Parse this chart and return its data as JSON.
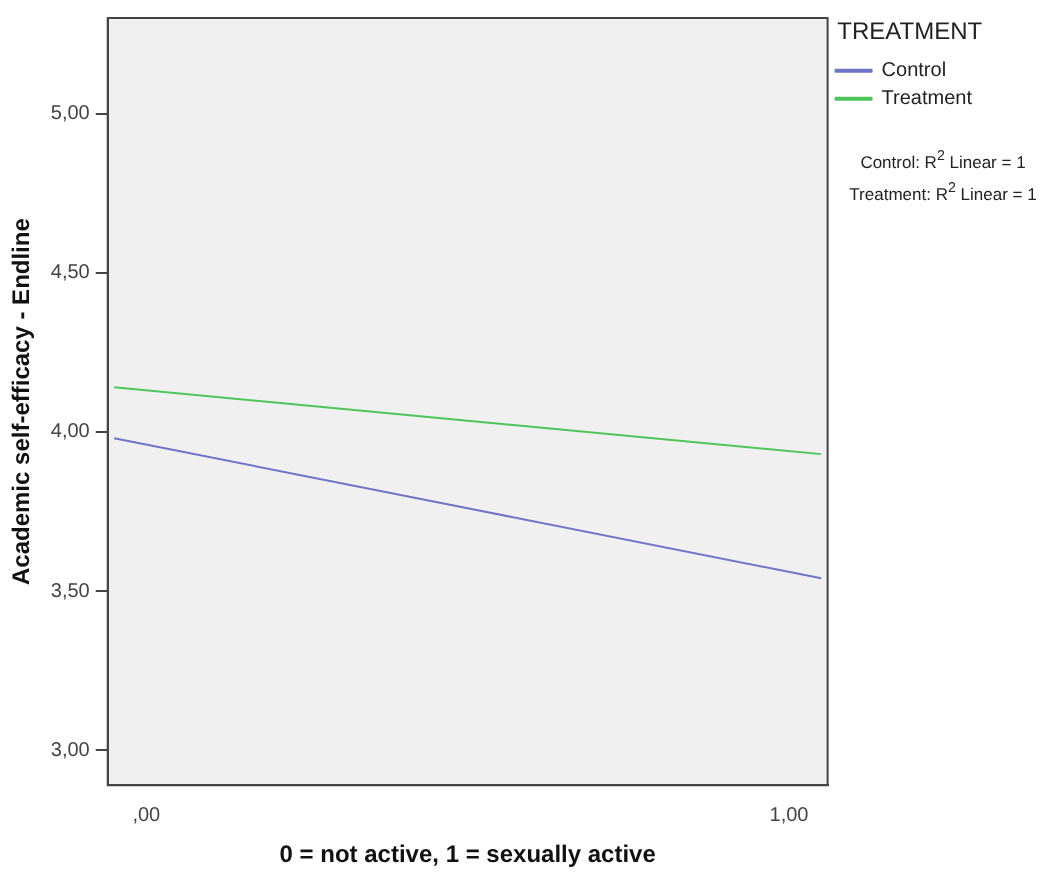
{
  "chart_data": {
    "type": "line",
    "xlabel": "0 = not active, 1 = sexually active",
    "ylabel": "Academic self-efficacy - Endline",
    "legend_title": "TREATMENT",
    "legend": "top right",
    "marker": "none",
    "grid": false,
    "xlim": [
      -0.06,
      1.06
    ],
    "xticks": [
      {
        "value": 0,
        "label": ",00"
      },
      {
        "value": 1,
        "label": "1,00"
      }
    ],
    "ylim": [
      2.89,
      5.3
    ],
    "yticks": [
      {
        "value": 3,
        "label": "3,00"
      },
      {
        "value": 3.5,
        "label": "3,50"
      },
      {
        "value": 4,
        "label": "4,00"
      },
      {
        "value": 4.5,
        "label": "4,50"
      },
      {
        "value": 5,
        "label": "5,00"
      }
    ],
    "series": [
      {
        "name": "Control",
        "color": "#6f74c4",
        "x": [
          -0.05,
          0.5,
          1.05
        ],
        "values": [
          3.98,
          3.76,
          3.54
        ]
      },
      {
        "name": "Treatment",
        "color": "#4ec45a",
        "x": [
          -0.05,
          0.5,
          1.05
        ],
        "values": [
          4.14,
          4.035,
          3.93
        ]
      }
    ],
    "annotations": [
      "Control: R$^{2}$ Linear = 1",
      "Treatment: R$^{2}$ Linear = 1"
    ]
  }
}
